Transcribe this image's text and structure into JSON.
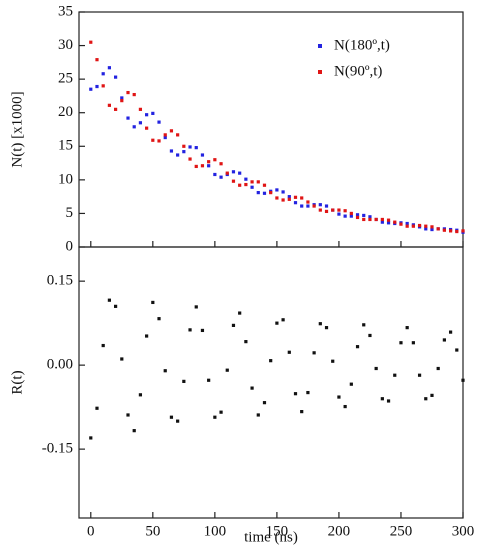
{
  "chart_data": [
    {
      "type": "scatter",
      "ylabel": "N(t) [x1000]",
      "xlim": [
        -9.5,
        300
      ],
      "ylim": [
        0,
        35
      ],
      "yticks": [
        0,
        5,
        10,
        15,
        20,
        25,
        30,
        35
      ],
      "legend": "upper right",
      "x": [
        0,
        5,
        10,
        15,
        20,
        25,
        30,
        35,
        40,
        45,
        50,
        55,
        60,
        65,
        70,
        75,
        80,
        85,
        90,
        95,
        100,
        105,
        110,
        115,
        120,
        125,
        130,
        135,
        140,
        145,
        150,
        155,
        160,
        165,
        170,
        175,
        180,
        185,
        190,
        195,
        200,
        205,
        210,
        215,
        220,
        225,
        230,
        235,
        240,
        245,
        250,
        255,
        260,
        265,
        270,
        275,
        280,
        285,
        290,
        295,
        300
      ],
      "series": [
        {
          "name": "N(180º,t)",
          "color": "#2323e0",
          "values": [
            23.5,
            23.9,
            25.8,
            26.7,
            25.3,
            22.2,
            19.2,
            17.9,
            18.5,
            19.7,
            19.9,
            18.6,
            16.3,
            14.3,
            13.7,
            14.2,
            14.9,
            14.8,
            13.7,
            12.1,
            10.8,
            10.4,
            10.8,
            11.2,
            11.0,
            10.1,
            8.9,
            8.1,
            8.0,
            8.3,
            8.5,
            8.2,
            7.5,
            6.6,
            6.1,
            6.1,
            6.3,
            6.3,
            6.1,
            5.5,
            4.9,
            4.6,
            4.6,
            4.8,
            4.7,
            4.5,
            4.1,
            3.7,
            3.6,
            3.5,
            3.6,
            3.5,
            3.3,
            3.0,
            2.7,
            2.6,
            2.7,
            2.7,
            2.6,
            2.5,
            2.2
          ]
        },
        {
          "name": "N(90º,t)",
          "color": "#e01515",
          "values": [
            30.5,
            27.9,
            24.0,
            21.1,
            20.5,
            21.8,
            23.0,
            22.7,
            20.5,
            17.7,
            15.9,
            15.8,
            16.7,
            17.3,
            16.7,
            15.0,
            13.1,
            12.0,
            12.1,
            12.7,
            13.0,
            12.4,
            11.0,
            9.8,
            9.2,
            9.3,
            9.7,
            9.7,
            9.2,
            8.1,
            7.3,
            7.0,
            7.1,
            7.4,
            7.3,
            6.7,
            6.1,
            5.5,
            5.3,
            5.5,
            5.5,
            5.4,
            5.0,
            4.4,
            4.1,
            4.1,
            4.1,
            4.1,
            4.0,
            3.7,
            3.4,
            3.1,
            3.1,
            3.2,
            3.1,
            3.0,
            2.7,
            2.5,
            2.4,
            2.3,
            2.4
          ]
        }
      ]
    },
    {
      "type": "scatter",
      "xlabel": "time (ns)",
      "ylabel": "R(t)",
      "xlim": [
        -9.5,
        300
      ],
      "ylim": [
        -0.273,
        0.211
      ],
      "xticks": [
        0,
        50,
        100,
        150,
        200,
        250,
        300
      ],
      "yticks": [
        -0.15,
        {
          "value": 0,
          "label": "0.00"
        },
        0.15
      ],
      "x": [
        0,
        5,
        10,
        15,
        20,
        25,
        30,
        35,
        40,
        45,
        50,
        55,
        60,
        65,
        70,
        75,
        80,
        85,
        90,
        95,
        100,
        105,
        110,
        115,
        120,
        125,
        130,
        135,
        140,
        145,
        150,
        155,
        160,
        165,
        170,
        175,
        180,
        185,
        190,
        195,
        200,
        205,
        210,
        215,
        220,
        225,
        230,
        235,
        240,
        245,
        250,
        255,
        260,
        265,
        270,
        275,
        280,
        285,
        290,
        295,
        300
      ],
      "series": [
        {
          "name": null,
          "color": "#111111",
          "values": [
            -0.13,
            -0.077,
            0.035,
            0.116,
            0.105,
            0.011,
            -0.089,
            -0.117,
            -0.053,
            0.052,
            0.112,
            0.083,
            -0.01,
            -0.093,
            -0.1,
            -0.029,
            0.063,
            0.104,
            0.062,
            -0.027,
            -0.093,
            -0.084,
            -0.009,
            0.071,
            0.093,
            0.042,
            -0.041,
            -0.089,
            -0.067,
            0.008,
            0.075,
            0.081,
            0.023,
            -0.051,
            -0.083,
            -0.049,
            0.022,
            0.074,
            0.067,
            0.007,
            -0.057,
            -0.074,
            -0.034,
            0.033,
            0.072,
            0.053,
            -0.006,
            -0.06,
            -0.064,
            -0.018,
            0.04,
            0.067,
            0.04,
            -0.018,
            -0.06,
            -0.054,
            -0.006,
            0.045,
            0.059,
            0.027,
            -0.027
          ]
        }
      ]
    }
  ]
}
